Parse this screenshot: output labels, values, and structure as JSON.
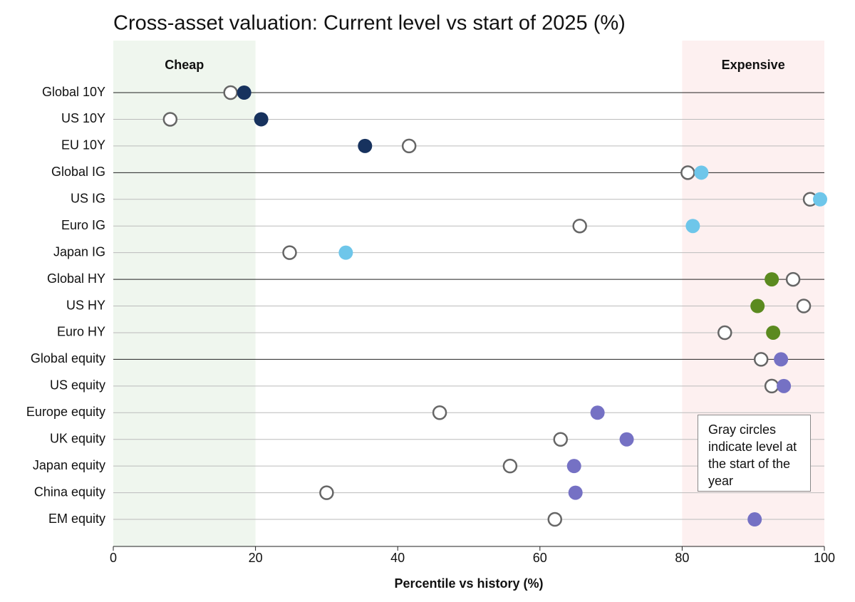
{
  "chart_data": {
    "type": "dot",
    "title": "Cross-asset valuation: Current level vs start of 2025 (%)",
    "x_label": "Percentile vs history (%)",
    "categories": [
      "Global 10Y",
      "US 10Y",
      "EU 10Y",
      "Global IG",
      "US IG",
      "Euro IG",
      "Japan IG",
      "Global HY",
      "US HY",
      "Euro HY",
      "Global equity",
      "US equity",
      "Europe equity",
      "UK equity",
      "Japan equity",
      "China equity",
      "EM equity"
    ],
    "series": [
      {
        "color": "#666666",
        "marker": "hollow",
        "values": [
          16.5,
          8.0,
          41.6,
          80.8,
          98.0,
          65.6,
          24.8,
          95.6,
          97.1,
          86.0,
          91.1,
          92.6,
          45.9,
          62.9,
          55.8,
          30.0,
          62.1
        ]
      },
      {
        "marker": "filled",
        "colors": [
          "#17325e",
          "#17325e",
          "#17325e",
          "#6ec6ea",
          "#6ec6ea",
          "#6ec6ea",
          "#6ec6ea",
          "#5b8a1f",
          "#5b8a1f",
          "#5b8a1f",
          "#7571c4",
          "#7571c4",
          "#7571c4",
          "#7571c4",
          "#7571c4",
          "#7571c4",
          "#7571c4"
        ],
        "values": [
          18.4,
          20.8,
          35.4,
          82.7,
          99.4,
          81.5,
          32.7,
          92.6,
          90.6,
          92.8,
          93.9,
          94.3,
          68.1,
          72.2,
          64.8,
          65.0,
          90.2
        ]
      }
    ],
    "xlim": [
      0,
      100
    ],
    "xticks": [
      0,
      20,
      40,
      60,
      80,
      100
    ],
    "zones": [
      {
        "label": "Cheap",
        "range": [
          0,
          20
        ],
        "color": "#eff6ee"
      },
      {
        "label": "Expensive",
        "range": [
          80,
          100
        ],
        "color": "#fdf0f0"
      }
    ],
    "strong_rows": [
      0,
      3,
      7,
      10
    ],
    "annotation": "Gray circles indicate level at the start of the year"
  }
}
